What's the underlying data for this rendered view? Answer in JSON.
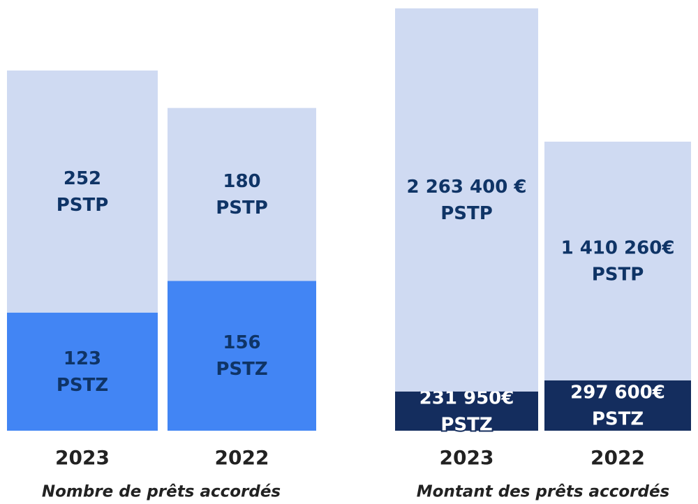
{
  "chart_data": [
    {
      "type": "bar",
      "stacked": true,
      "title": "Nombre de prêts accordés",
      "categories": [
        "2023",
        "2022"
      ],
      "series": [
        {
          "name": "PSTZ",
          "color": "#4285f4",
          "label_color": "#0f3466",
          "values": [
            123,
            156
          ]
        },
        {
          "name": "PSTP",
          "color": "#cfdaf2",
          "label_color": "#0f3466",
          "values": [
            252,
            180
          ]
        }
      ]
    },
    {
      "type": "bar",
      "stacked": true,
      "title": "Montant des prêts accordés",
      "categories": [
        "2023",
        "2022"
      ],
      "series": [
        {
          "name": "PSTZ",
          "color": "#142d5e",
          "label_color": "#ffffff",
          "values": [
            231950,
            297600
          ],
          "value_labels": [
            "231 950€",
            "297 600€"
          ]
        },
        {
          "name": "PSTP",
          "color": "#cfdaf2",
          "label_color": "#0f3466",
          "values": [
            2263400,
            1410260
          ],
          "value_labels": [
            "2 263 400 €",
            "1 410 260€"
          ]
        }
      ]
    }
  ]
}
